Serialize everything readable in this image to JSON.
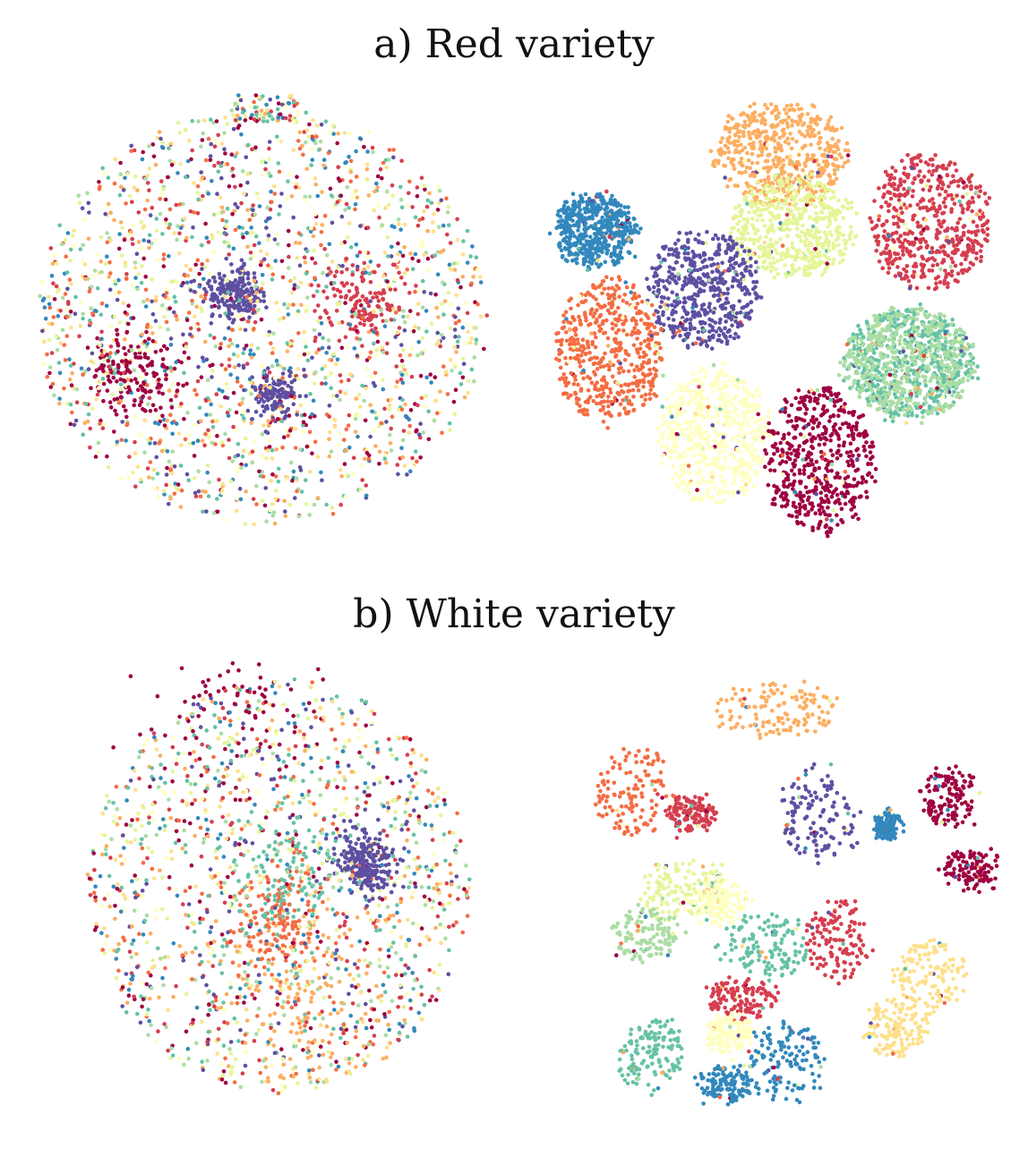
{
  "sections": [
    {
      "title": "a) Red variety"
    },
    {
      "title": "b) White variety"
    }
  ],
  "palette": [
    "#9e0142",
    "#d53e4f",
    "#f46d43",
    "#fdae61",
    "#fee08b",
    "#ffffbf",
    "#e6f598",
    "#abdda4",
    "#66c2a5",
    "#3288bd",
    "#5e4fa2"
  ],
  "chart_data": [
    {
      "type": "scatter",
      "panel": "a-left",
      "title": "",
      "layout": "mixed",
      "xlim": [
        -1,
        1
      ],
      "ylim": [
        -1,
        1
      ],
      "grid": false,
      "density": [
        {
          "class": 10,
          "x": -0.12,
          "y": 0.1,
          "spread": 0.06,
          "weight": 0.08
        },
        {
          "class": 10,
          "x": 0.05,
          "y": -0.35,
          "spread": 0.06,
          "weight": 0.05
        },
        {
          "class": 1,
          "x": 0.45,
          "y": 0.05,
          "spread": 0.1,
          "weight": 0.06
        },
        {
          "class": 0,
          "x": -0.55,
          "y": -0.25,
          "spread": 0.1,
          "weight": 0.05
        }
      ],
      "cap": {
        "x": 0.02,
        "y": 0.92,
        "w": 0.28,
        "h": 0.12
      }
    },
    {
      "type": "scatter",
      "panel": "a-right",
      "title": "",
      "layout": "clustered",
      "xlim": [
        -1,
        1
      ],
      "ylim": [
        -1,
        1
      ],
      "grid": false,
      "clusters": [
        {
          "class": 3,
          "x": 0.05,
          "y": 0.72,
          "rx": 0.3,
          "ry": 0.22
        },
        {
          "class": 6,
          "x": 0.1,
          "y": 0.4,
          "rx": 0.28,
          "ry": 0.22
        },
        {
          "class": 1,
          "x": 0.72,
          "y": 0.42,
          "rx": 0.26,
          "ry": 0.3
        },
        {
          "class": 9,
          "x": -0.78,
          "y": 0.38,
          "rx": 0.18,
          "ry": 0.16
        },
        {
          "class": 10,
          "x": -0.3,
          "y": 0.12,
          "rx": 0.24,
          "ry": 0.26
        },
        {
          "class": 8,
          "x": 0.62,
          "y": -0.2,
          "rx": 0.3,
          "ry": 0.24
        },
        {
          "class": 7,
          "x": 0.62,
          "y": -0.2,
          "rx": 0.3,
          "ry": 0.24
        },
        {
          "class": 2,
          "x": -0.72,
          "y": -0.15,
          "rx": 0.24,
          "ry": 0.32
        },
        {
          "class": 5,
          "x": -0.25,
          "y": -0.52,
          "rx": 0.24,
          "ry": 0.3
        },
        {
          "class": 0,
          "x": 0.22,
          "y": -0.62,
          "rx": 0.24,
          "ry": 0.32
        }
      ]
    },
    {
      "type": "scatter",
      "panel": "b-left",
      "title": "",
      "layout": "mixed",
      "xlim": [
        -1,
        1
      ],
      "ylim": [
        -1,
        1
      ],
      "grid": false,
      "density": [
        {
          "class": 10,
          "x": 0.45,
          "y": 0.1,
          "spread": 0.08,
          "weight": 0.1
        },
        {
          "class": 2,
          "x": 0.0,
          "y": -0.15,
          "spread": 0.12,
          "weight": 0.06
        },
        {
          "class": 8,
          "x": 0.05,
          "y": 0.05,
          "spread": 0.15,
          "weight": 0.06
        },
        {
          "class": 3,
          "x": 0.1,
          "y": -0.55,
          "spread": 0.2,
          "weight": 0.06
        },
        {
          "class": 0,
          "x": -0.2,
          "y": 0.8,
          "spread": 0.25,
          "weight": 0.05
        }
      ]
    },
    {
      "type": "scatter",
      "panel": "b-right",
      "title": "",
      "layout": "clustered",
      "xlim": [
        -1,
        1
      ],
      "ylim": [
        -1,
        1
      ],
      "grid": false,
      "clusters": [
        {
          "class": 3,
          "x": 0.0,
          "y": 0.82,
          "rx": 0.28,
          "ry": 0.12
        },
        {
          "class": 2,
          "x": -0.62,
          "y": 0.45,
          "rx": 0.18,
          "ry": 0.2
        },
        {
          "class": 1,
          "x": -0.38,
          "y": 0.35,
          "rx": 0.1,
          "ry": 0.08
        },
        {
          "class": 10,
          "x": 0.2,
          "y": 0.35,
          "rx": 0.18,
          "ry": 0.22
        },
        {
          "class": 9,
          "x": 0.5,
          "y": 0.3,
          "rx": 0.05,
          "ry": 0.06
        },
        {
          "class": 0,
          "x": 0.78,
          "y": 0.42,
          "rx": 0.12,
          "ry": 0.14
        },
        {
          "class": 0,
          "x": 0.9,
          "y": 0.1,
          "rx": 0.14,
          "ry": 0.08
        },
        {
          "class": 6,
          "x": -0.4,
          "y": 0.0,
          "rx": 0.2,
          "ry": 0.14
        },
        {
          "class": 7,
          "x": -0.58,
          "y": -0.2,
          "rx": 0.16,
          "ry": 0.12
        },
        {
          "class": 5,
          "x": -0.25,
          "y": -0.05,
          "rx": 0.14,
          "ry": 0.1
        },
        {
          "class": 8,
          "x": -0.05,
          "y": -0.25,
          "rx": 0.2,
          "ry": 0.14
        },
        {
          "class": 1,
          "x": 0.28,
          "y": -0.22,
          "rx": 0.14,
          "ry": 0.18
        },
        {
          "class": 4,
          "x": 0.7,
          "y": -0.38,
          "rx": 0.16,
          "ry": 0.16
        },
        {
          "class": 4,
          "x": 0.55,
          "y": -0.62,
          "rx": 0.14,
          "ry": 0.14
        },
        {
          "class": 1,
          "x": -0.15,
          "y": -0.5,
          "rx": 0.16,
          "ry": 0.08
        },
        {
          "class": 5,
          "x": -0.2,
          "y": -0.65,
          "rx": 0.1,
          "ry": 0.08
        },
        {
          "class": 8,
          "x": -0.55,
          "y": -0.75,
          "rx": 0.14,
          "ry": 0.16
        },
        {
          "class": 9,
          "x": 0.05,
          "y": -0.78,
          "rx": 0.18,
          "ry": 0.18
        },
        {
          "class": 9,
          "x": -0.22,
          "y": -0.88,
          "rx": 0.12,
          "ry": 0.08
        }
      ]
    }
  ]
}
